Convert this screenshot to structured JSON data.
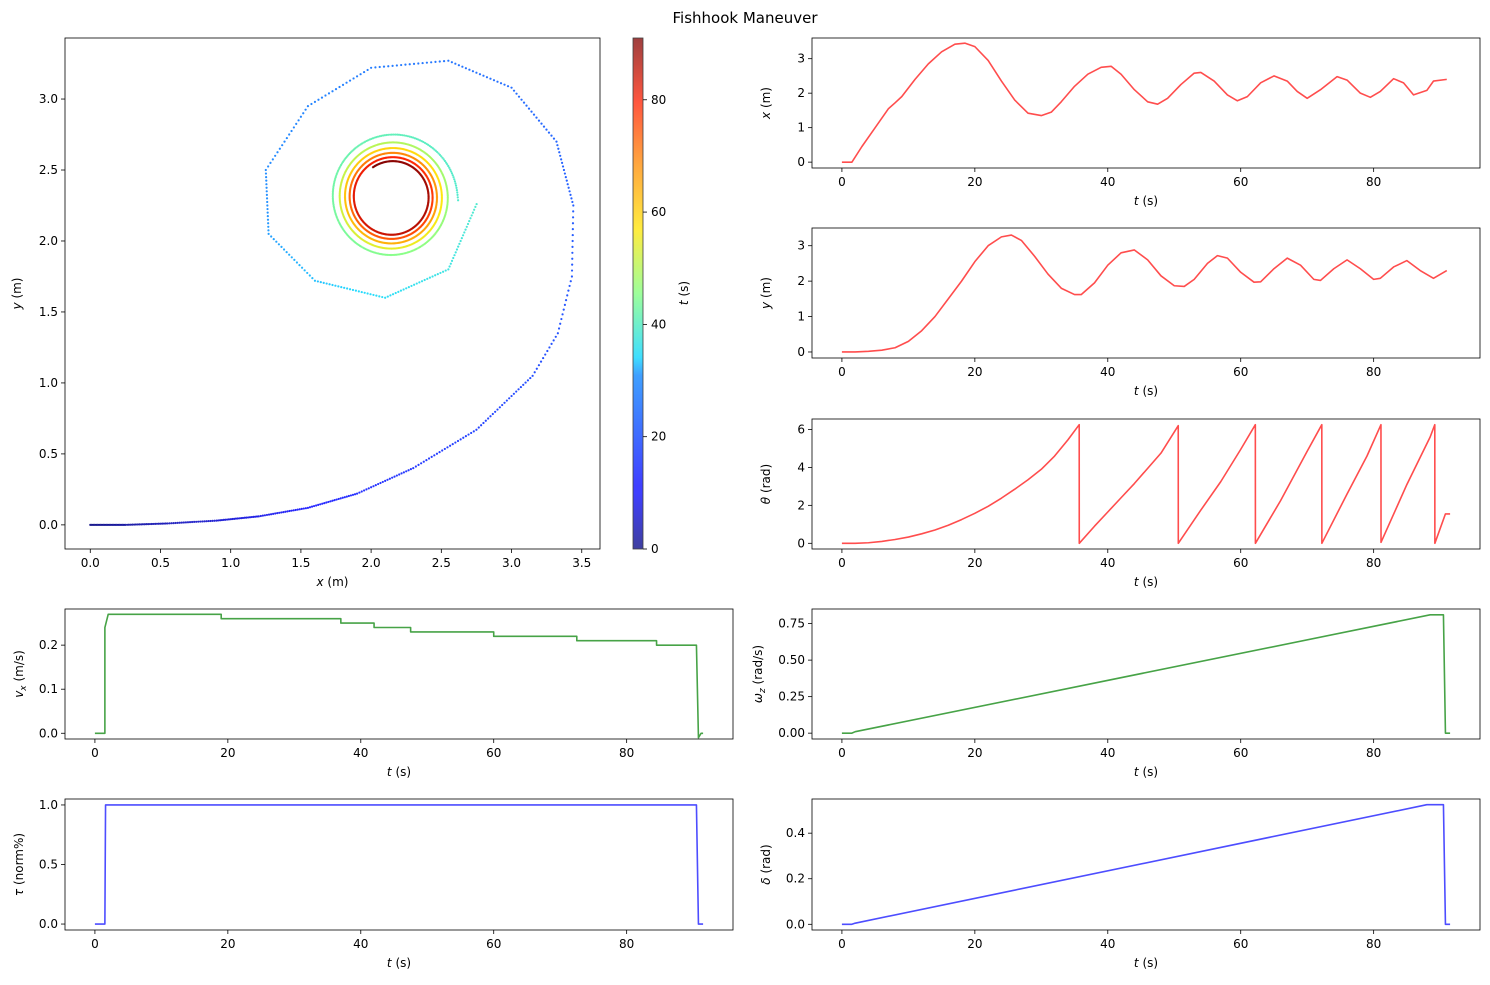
{
  "title": "Fishhook Maneuver",
  "chart_data": [
    {
      "id": "traj",
      "type": "scatter",
      "xlabel_var": "x",
      "xlabel_unit": " (m)",
      "ylabel_var": "y",
      "ylabel_unit": " (m)",
      "xlim": [
        -0.18,
        3.63
      ],
      "ylim": [
        -0.17,
        3.43
      ],
      "xticks": [
        0.0,
        0.5,
        1.0,
        1.5,
        2.0,
        2.5,
        3.0,
        3.5
      ],
      "yticks": [
        0.0,
        0.5,
        1.0,
        1.5,
        2.0,
        2.5,
        3.0
      ],
      "tick_decimals": 1,
      "description": "Trajectory points colored by time t (s), spiral from (0,0) inward to center ~(2.15,2.31)",
      "spiral": {
        "center": [
          2.15,
          2.31
        ],
        "points": [
          {
            "t": 0,
            "x": 0.0,
            "y": 0.0
          },
          {
            "t": 2,
            "x": 0.25,
            "y": 0.0
          },
          {
            "t": 4,
            "x": 0.55,
            "y": 0.01
          },
          {
            "t": 6,
            "x": 0.9,
            "y": 0.03
          },
          {
            "t": 8,
            "x": 1.2,
            "y": 0.06
          },
          {
            "t": 10,
            "x": 1.55,
            "y": 0.12
          },
          {
            "t": 12,
            "x": 1.9,
            "y": 0.22
          },
          {
            "t": 14,
            "x": 2.3,
            "y": 0.4
          },
          {
            "t": 16,
            "x": 2.75,
            "y": 0.67
          },
          {
            "t": 18,
            "x": 3.15,
            "y": 1.05
          },
          {
            "t": 19,
            "x": 3.33,
            "y": 1.35
          },
          {
            "t": 20,
            "x": 3.43,
            "y": 1.75
          },
          {
            "t": 21,
            "x": 3.44,
            "y": 2.25
          },
          {
            "t": 22.5,
            "x": 3.32,
            "y": 2.7
          },
          {
            "t": 24,
            "x": 3.0,
            "y": 3.08
          },
          {
            "t": 25.5,
            "x": 2.55,
            "y": 3.27
          },
          {
            "t": 27,
            "x": 2.0,
            "y": 3.22
          },
          {
            "t": 28.5,
            "x": 1.55,
            "y": 2.95
          },
          {
            "t": 30,
            "x": 1.25,
            "y": 2.5
          },
          {
            "t": 31.5,
            "x": 1.27,
            "y": 2.05
          },
          {
            "t": 33,
            "x": 1.6,
            "y": 1.72
          },
          {
            "t": 35,
            "x": 2.1,
            "y": 1.6
          },
          {
            "t": 37,
            "x": 2.55,
            "y": 1.8
          },
          {
            "t": 39,
            "x": 2.76,
            "y": 2.28
          }
        ],
        "inner_radius_start": 0.47,
        "inner_radius_end": 0.25,
        "t_inner_start": 39,
        "t_end": 91
      }
    },
    {
      "id": "x_t",
      "type": "line",
      "color": "#ff4d4d",
      "xlabel_var": "t",
      "xlabel_unit": " (s)",
      "ylabel_var": "x",
      "ylabel_unit": " (m)",
      "xlim": [
        -4.5,
        96
      ],
      "ylim": [
        -0.17,
        3.6
      ],
      "xticks": [
        0,
        20,
        40,
        60,
        80
      ],
      "yticks": [
        0,
        1,
        2,
        3
      ],
      "tick_decimals": 0,
      "x": [
        0,
        1.5,
        3,
        5,
        7,
        8,
        9,
        11,
        13,
        15,
        17,
        18.5,
        20,
        22,
        24,
        26,
        28,
        30,
        31.5,
        33,
        35,
        37,
        39,
        40.5,
        42,
        44,
        46,
        47.5,
        49,
        51,
        53,
        54,
        56,
        58,
        59.5,
        61,
        63,
        65,
        67,
        68.5,
        70,
        72,
        74.5,
        76,
        78,
        79.5,
        81,
        83,
        84.5,
        86,
        88,
        89,
        91
      ],
      "y": [
        0,
        0,
        0.45,
        1.0,
        1.55,
        1.72,
        1.9,
        2.4,
        2.85,
        3.2,
        3.42,
        3.45,
        3.35,
        2.95,
        2.35,
        1.8,
        1.42,
        1.35,
        1.45,
        1.75,
        2.2,
        2.55,
        2.75,
        2.78,
        2.55,
        2.1,
        1.75,
        1.68,
        1.85,
        2.25,
        2.58,
        2.6,
        2.35,
        1.95,
        1.78,
        1.9,
        2.3,
        2.5,
        2.35,
        2.05,
        1.85,
        2.1,
        2.48,
        2.38,
        2.0,
        1.88,
        2.05,
        2.42,
        2.3,
        1.95,
        2.08,
        2.35,
        2.4
      ]
    },
    {
      "id": "y_t",
      "type": "line",
      "color": "#ff4d4d",
      "xlabel_var": "t",
      "xlabel_unit": " (s)",
      "ylabel_var": "y",
      "ylabel_unit": " (m)",
      "xlim": [
        -4.5,
        96
      ],
      "ylim": [
        -0.17,
        3.5
      ],
      "xticks": [
        0,
        20,
        40,
        60,
        80
      ],
      "yticks": [
        0,
        1,
        2,
        3
      ],
      "tick_decimals": 0,
      "x": [
        0,
        2,
        4,
        6,
        8,
        10,
        12,
        14,
        16,
        18,
        20,
        22,
        24,
        25.5,
        27,
        29,
        31,
        33,
        35,
        36,
        38,
        40,
        42,
        44,
        46,
        48,
        50,
        51.5,
        53,
        55,
        56.5,
        58,
        60,
        62,
        63,
        65,
        67,
        69,
        71,
        72,
        74,
        76,
        78,
        80,
        81,
        83,
        85,
        87,
        89,
        91
      ],
      "y": [
        0,
        0.0,
        0.02,
        0.05,
        0.12,
        0.3,
        0.6,
        1.0,
        1.5,
        2.0,
        2.55,
        3.0,
        3.25,
        3.3,
        3.15,
        2.7,
        2.2,
        1.8,
        1.62,
        1.62,
        1.95,
        2.45,
        2.8,
        2.88,
        2.6,
        2.15,
        1.87,
        1.85,
        2.05,
        2.5,
        2.72,
        2.65,
        2.25,
        1.97,
        1.98,
        2.35,
        2.65,
        2.45,
        2.05,
        2.02,
        2.35,
        2.6,
        2.35,
        2.05,
        2.08,
        2.4,
        2.58,
        2.3,
        2.08,
        2.3
      ]
    },
    {
      "id": "theta_t",
      "type": "line",
      "color": "#ff4d4d",
      "xlabel_var": "t",
      "xlabel_unit": " (s)",
      "ylabel_var": "θ",
      "ylabel_unit": " (rad)",
      "xlim": [
        -4.5,
        96
      ],
      "ylim": [
        -0.3,
        6.55
      ],
      "xticks": [
        0,
        20,
        40,
        60,
        80
      ],
      "yticks": [
        0,
        2,
        4,
        6
      ],
      "tick_decimals": 0,
      "x": [
        0,
        2,
        4,
        6,
        8,
        10,
        12,
        14,
        16,
        18,
        20,
        22,
        24,
        26,
        28,
        30,
        32,
        34,
        35.7,
        35.71,
        38,
        40,
        42,
        44,
        46,
        48,
        50.6,
        50.61,
        54,
        57,
        60,
        62.2,
        62.21,
        66,
        70,
        72.2,
        72.21,
        76,
        79,
        81.1,
        81.11,
        85,
        88.5,
        89.2,
        89.21,
        90.8,
        91.5
      ],
      "y": [
        0,
        0,
        0.03,
        0.1,
        0.2,
        0.33,
        0.5,
        0.7,
        0.95,
        1.25,
        1.58,
        1.95,
        2.38,
        2.85,
        3.35,
        3.9,
        4.6,
        5.45,
        6.25,
        0.0,
        0.9,
        1.65,
        2.4,
        3.15,
        3.95,
        4.75,
        6.2,
        0.0,
        1.75,
        3.25,
        4.95,
        6.25,
        0.0,
        2.25,
        4.85,
        6.25,
        0.0,
        2.6,
        4.6,
        6.25,
        0.05,
        3.1,
        5.6,
        6.25,
        0.0,
        1.55,
        1.55
      ]
    },
    {
      "id": "vx_t",
      "type": "line",
      "color": "#47a347",
      "xlabel_var": "t",
      "xlabel_unit": " (s)",
      "ylabel_var": "v",
      "ylabel_sub": "x",
      "ylabel_unit": " (m/s)",
      "xlim": [
        -4.5,
        96
      ],
      "ylim": [
        -0.013,
        0.282
      ],
      "xticks": [
        0,
        20,
        40,
        60,
        80
      ],
      "yticks": [
        0.0,
        0.1,
        0.2
      ],
      "tick_decimals": 1,
      "x": [
        0,
        1.5,
        1.5,
        2,
        19,
        19,
        37,
        37,
        42,
        42,
        47.5,
        47.5,
        60,
        60,
        72.5,
        72.5,
        84.5,
        84.5,
        90.5,
        90.8,
        91.2,
        91.5
      ],
      "y": [
        0,
        0,
        0.24,
        0.27,
        0.27,
        0.26,
        0.26,
        0.25,
        0.25,
        0.24,
        0.24,
        0.23,
        0.23,
        0.22,
        0.22,
        0.21,
        0.21,
        0.2,
        0.2,
        -0.01,
        0.0,
        0.0
      ]
    },
    {
      "id": "wz_t",
      "type": "line",
      "color": "#47a347",
      "xlabel_var": "t",
      "xlabel_unit": " (s)",
      "ylabel_var": "ω",
      "ylabel_sub": "z",
      "ylabel_unit": " (rad/s)",
      "xlim": [
        -4.5,
        96
      ],
      "ylim": [
        -0.04,
        0.85
      ],
      "xticks": [
        0,
        20,
        40,
        60,
        80
      ],
      "yticks": [
        0.0,
        0.25,
        0.5,
        0.75
      ],
      "tick_decimals": 2,
      "x": [
        0,
        1.5,
        2,
        88.5,
        90.5,
        90.8,
        91.5
      ],
      "y": [
        0,
        0,
        0.01,
        0.81,
        0.81,
        0.0,
        0.0
      ]
    },
    {
      "id": "tau_t",
      "type": "line",
      "color": "#4d4dff",
      "xlabel_var": "t",
      "xlabel_unit": " (s)",
      "ylabel_var": "τ",
      "ylabel_unit": " (norm%)",
      "xlim": [
        -4.5,
        96
      ],
      "ylim": [
        -0.05,
        1.05
      ],
      "xticks": [
        0,
        20,
        40,
        60,
        80
      ],
      "yticks": [
        0.0,
        0.5,
        1.0
      ],
      "tick_decimals": 1,
      "x": [
        0,
        1.5,
        1.6,
        90.5,
        90.8,
        91.5
      ],
      "y": [
        0,
        0,
        1.0,
        1.0,
        0.0,
        0.0
      ]
    },
    {
      "id": "delta_t",
      "type": "line",
      "color": "#4d4dff",
      "xlabel_var": "t",
      "xlabel_unit": " (s)",
      "ylabel_var": "δ",
      "ylabel_unit": " (rad)",
      "xlim": [
        -4.5,
        96
      ],
      "ylim": [
        -0.025,
        0.55
      ],
      "xticks": [
        0,
        20,
        40,
        60,
        80
      ],
      "yticks": [
        0.0,
        0.2,
        0.4
      ],
      "tick_decimals": 1,
      "x": [
        0,
        1.5,
        2,
        88,
        90.5,
        90.8,
        91.5
      ],
      "y": [
        0,
        0,
        0.005,
        0.525,
        0.525,
        0.0,
        0.0
      ]
    }
  ],
  "colorbar": {
    "label_var": "t",
    "label_unit": " (s)",
    "range": [
      0,
      91
    ],
    "ticks": [
      0,
      20,
      40,
      60,
      80
    ]
  }
}
